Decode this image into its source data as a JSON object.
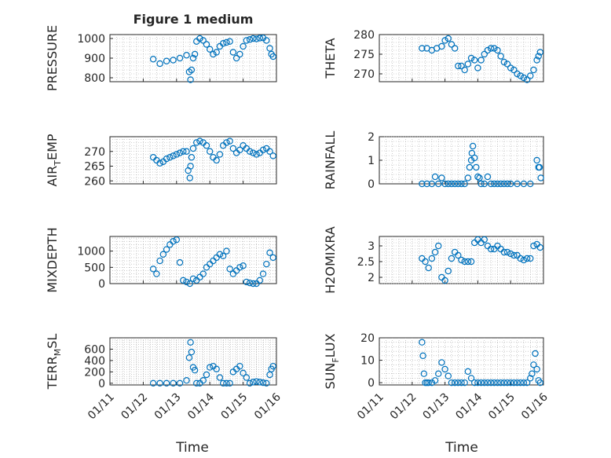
{
  "chart_data": [
    {
      "type": "scatter",
      "row": 0,
      "col": 0,
      "title": "Figure 1 medium",
      "ylabel": {
        "main": "PRESSURE"
      },
      "ylim": [
        780,
        1020
      ],
      "yticks": [
        800,
        900,
        1000
      ],
      "ytick_labels": [
        "800",
        "900",
        "1000"
      ],
      "xlim": [
        0,
        5
      ],
      "grid": true,
      "x": [
        1.3,
        1.5,
        1.7,
        1.9,
        2.1,
        2.3,
        2.38,
        2.42,
        2.45,
        2.5,
        2.55,
        2.6,
        2.7,
        2.8,
        2.9,
        3.0,
        3.1,
        3.2,
        3.3,
        3.4,
        3.5,
        3.6,
        3.7,
        3.8,
        3.9,
        4.0,
        4.1,
        4.2,
        4.3,
        4.4,
        4.5,
        4.6,
        4.7,
        4.8,
        4.85,
        4.9
      ],
      "y": [
        895,
        872,
        885,
        890,
        900,
        915,
        830,
        790,
        840,
        900,
        920,
        985,
        1000,
        990,
        970,
        945,
        920,
        930,
        960,
        975,
        980,
        985,
        930,
        900,
        920,
        960,
        990,
        995,
        1000,
        998,
        1002,
        1003,
        990,
        950,
        920,
        908
      ]
    },
    {
      "type": "scatter",
      "row": 0,
      "col": 1,
      "ylabel": {
        "main": "THETA"
      },
      "ylim": [
        268,
        280
      ],
      "yticks": [
        270,
        275,
        280
      ],
      "ytick_labels": [
        "270",
        "275",
        "280"
      ],
      "xlim": [
        0,
        5
      ],
      "grid": true,
      "x": [
        1.3,
        1.45,
        1.6,
        1.75,
        1.9,
        2.0,
        2.1,
        2.2,
        2.3,
        2.4,
        2.5,
        2.6,
        2.7,
        2.8,
        2.9,
        3.0,
        3.1,
        3.2,
        3.3,
        3.4,
        3.5,
        3.6,
        3.7,
        3.8,
        3.9,
        4.0,
        4.1,
        4.2,
        4.3,
        4.4,
        4.5,
        4.6,
        4.7,
        4.8,
        4.85,
        4.9
      ],
      "y": [
        276.5,
        276.5,
        276.0,
        276.5,
        277.0,
        278.5,
        279.0,
        277.5,
        276.5,
        272.0,
        272.0,
        271.0,
        272.5,
        274.0,
        273.5,
        271.5,
        273.5,
        275.0,
        276.0,
        276.5,
        276.5,
        276.0,
        274.5,
        273.0,
        272.5,
        271.5,
        271.0,
        270.0,
        269.5,
        269.0,
        268.5,
        269.5,
        271.0,
        273.5,
        274.5,
        275.5
      ]
    },
    {
      "type": "scatter",
      "row": 1,
      "col": 0,
      "ylabel": {
        "main": "AIR",
        "sub": "T",
        "rest": "EMP"
      },
      "ylim": [
        259,
        275
      ],
      "yticks": [
        260,
        265,
        270
      ],
      "ytick_labels": [
        "260",
        "265",
        "270"
      ],
      "xlim": [
        0,
        5
      ],
      "grid": true,
      "x": [
        1.3,
        1.4,
        1.5,
        1.6,
        1.7,
        1.8,
        1.9,
        2.0,
        2.1,
        2.2,
        2.3,
        2.35,
        2.4,
        2.42,
        2.45,
        2.5,
        2.6,
        2.7,
        2.8,
        2.9,
        3.0,
        3.1,
        3.2,
        3.3,
        3.4,
        3.5,
        3.6,
        3.7,
        3.8,
        3.9,
        4.0,
        4.1,
        4.2,
        4.3,
        4.4,
        4.5,
        4.6,
        4.7,
        4.8,
        4.9
      ],
      "y": [
        268,
        267,
        266,
        266.5,
        267.5,
        268,
        268.5,
        269,
        269.5,
        270,
        270,
        263.5,
        261,
        265,
        268,
        271,
        273,
        273.5,
        273,
        272,
        270,
        268,
        267,
        269,
        272,
        273,
        273.5,
        271,
        269.5,
        270.5,
        272,
        271,
        270,
        269.5,
        269,
        269.5,
        270.5,
        271,
        270,
        268.5
      ]
    },
    {
      "type": "scatter",
      "row": 1,
      "col": 1,
      "ylabel": {
        "main": "RAINFALL"
      },
      "ylim": [
        0,
        2
      ],
      "yticks": [
        0,
        1,
        2
      ],
      "ytick_labels": [
        "0",
        "1",
        "2"
      ],
      "xlim": [
        0,
        5
      ],
      "grid": true,
      "x": [
        1.3,
        1.45,
        1.6,
        1.7,
        1.8,
        1.9,
        2.0,
        2.1,
        2.2,
        2.3,
        2.4,
        2.5,
        2.6,
        2.7,
        2.75,
        2.8,
        2.82,
        2.85,
        2.9,
        2.95,
        3.0,
        3.05,
        3.1,
        3.2,
        3.3,
        3.4,
        3.5,
        3.6,
        3.7,
        3.8,
        3.9,
        4.0,
        4.2,
        4.4,
        4.6,
        4.8,
        4.85,
        4.88,
        4.92
      ],
      "y": [
        0,
        0,
        0,
        0.3,
        0,
        0.25,
        0,
        0,
        0,
        0,
        0,
        0,
        0,
        0.25,
        0.7,
        1.0,
        1.3,
        1.6,
        1.1,
        0.7,
        0.3,
        0.25,
        0,
        0,
        0.3,
        0,
        0,
        0,
        0,
        0,
        0,
        0,
        0,
        0,
        0,
        1.0,
        0.7,
        0.7,
        0.25
      ]
    },
    {
      "type": "scatter",
      "row": 2,
      "col": 0,
      "ylabel": {
        "main": "MIXDEPTH"
      },
      "ylim": [
        0,
        1450
      ],
      "yticks": [
        0,
        500,
        1000
      ],
      "ytick_labels": [
        "0",
        "500",
        "1000"
      ],
      "xlim": [
        0,
        5
      ],
      "grid": true,
      "x": [
        1.3,
        1.4,
        1.5,
        1.6,
        1.7,
        1.8,
        1.9,
        2.0,
        2.1,
        2.2,
        2.3,
        2.4,
        2.5,
        2.6,
        2.7,
        2.8,
        2.9,
        3.0,
        3.1,
        3.2,
        3.3,
        3.4,
        3.5,
        3.6,
        3.7,
        3.8,
        3.9,
        4.0,
        4.1,
        4.2,
        4.3,
        4.4,
        4.5,
        4.6,
        4.7,
        4.8,
        4.9
      ],
      "y": [
        450,
        300,
        700,
        900,
        1050,
        1200,
        1300,
        1350,
        650,
        100,
        50,
        0,
        150,
        100,
        200,
        300,
        500,
        600,
        700,
        800,
        900,
        850,
        1000,
        450,
        300,
        400,
        500,
        550,
        50,
        20,
        0,
        0,
        100,
        300,
        600,
        950,
        800
      ]
    },
    {
      "type": "scatter",
      "row": 2,
      "col": 1,
      "ylabel": {
        "main": "H2OMIXRA"
      },
      "ylim": [
        1.8,
        3.3
      ],
      "yticks": [
        2,
        2.5,
        3
      ],
      "ytick_labels": [
        "2",
        "2.5",
        "3"
      ],
      "xlim": [
        0,
        5
      ],
      "grid": true,
      "x": [
        1.3,
        1.4,
        1.5,
        1.6,
        1.7,
        1.8,
        1.9,
        2.0,
        2.1,
        2.2,
        2.3,
        2.4,
        2.5,
        2.6,
        2.7,
        2.8,
        2.9,
        3.0,
        3.1,
        3.2,
        3.3,
        3.4,
        3.5,
        3.6,
        3.7,
        3.8,
        3.9,
        4.0,
        4.1,
        4.2,
        4.3,
        4.4,
        4.5,
        4.6,
        4.7,
        4.8,
        4.9
      ],
      "y": [
        2.6,
        2.5,
        2.3,
        2.6,
        2.8,
        3.0,
        2.0,
        1.9,
        2.2,
        2.6,
        2.8,
        2.7,
        2.55,
        2.5,
        2.5,
        2.5,
        3.1,
        3.2,
        3.1,
        3.2,
        3.0,
        2.9,
        2.9,
        3.0,
        2.9,
        2.8,
        2.8,
        2.75,
        2.7,
        2.7,
        2.6,
        2.55,
        2.6,
        2.6,
        3.0,
        3.05,
        2.95
      ]
    },
    {
      "type": "scatter",
      "row": 3,
      "col": 0,
      "ylabel": {
        "main": "TERR",
        "sub": "M",
        "rest": "SL"
      },
      "ylim": [
        -30,
        800
      ],
      "yticks": [
        0,
        200,
        400,
        600
      ],
      "ytick_labels": [
        "0",
        "200",
        "400",
        "600"
      ],
      "xlim": [
        0,
        5
      ],
      "grid": true,
      "x": [
        1.3,
        1.5,
        1.7,
        1.9,
        2.1,
        2.3,
        2.38,
        2.42,
        2.45,
        2.5,
        2.55,
        2.6,
        2.7,
        2.8,
        2.9,
        3.0,
        3.1,
        3.2,
        3.3,
        3.4,
        3.5,
        3.6,
        3.7,
        3.8,
        3.9,
        4.0,
        4.1,
        4.2,
        4.3,
        4.4,
        4.5,
        4.6,
        4.7,
        4.8,
        4.85,
        4.9
      ],
      "y": [
        0,
        0,
        0,
        0,
        0,
        50,
        450,
        720,
        550,
        280,
        230,
        0,
        0,
        50,
        150,
        280,
        300,
        250,
        100,
        0,
        0,
        0,
        200,
        250,
        300,
        180,
        100,
        0,
        20,
        30,
        20,
        10,
        0,
        150,
        250,
        300
      ]
    },
    {
      "type": "scatter",
      "row": 3,
      "col": 1,
      "ylabel": {
        "main": "SUN",
        "sub": "F",
        "rest": "LUX"
      },
      "ylim": [
        -1,
        20
      ],
      "yticks": [
        0,
        10,
        20
      ],
      "ytick_labels": [
        "0",
        "10",
        "20"
      ],
      "xlim": [
        0,
        5
      ],
      "grid": true,
      "x": [
        1.3,
        1.33,
        1.36,
        1.4,
        1.45,
        1.5,
        1.6,
        1.7,
        1.8,
        1.9,
        2.0,
        2.1,
        2.2,
        2.3,
        2.4,
        2.5,
        2.6,
        2.7,
        2.8,
        2.9,
        3.0,
        3.1,
        3.2,
        3.3,
        3.4,
        3.5,
        3.6,
        3.7,
        3.8,
        3.9,
        4.0,
        4.1,
        4.2,
        4.3,
        4.4,
        4.5,
        4.6,
        4.65,
        4.7,
        4.75,
        4.8,
        4.85,
        4.9
      ],
      "y": [
        18,
        12,
        4,
        0,
        0,
        0,
        0,
        1,
        4,
        9,
        6,
        3,
        0,
        0,
        0,
        0,
        0,
        5,
        2,
        0,
        0,
        0,
        0,
        0,
        0,
        0,
        0,
        0,
        0,
        0,
        0,
        0,
        0,
        0,
        0,
        0,
        2,
        4,
        8,
        13,
        6,
        1,
        0
      ]
    }
  ],
  "x_tick_labels": [
    "01/11",
    "01/12",
    "01/13",
    "01/14",
    "01/15",
    "01/16"
  ],
  "x_axis_label": "Time"
}
